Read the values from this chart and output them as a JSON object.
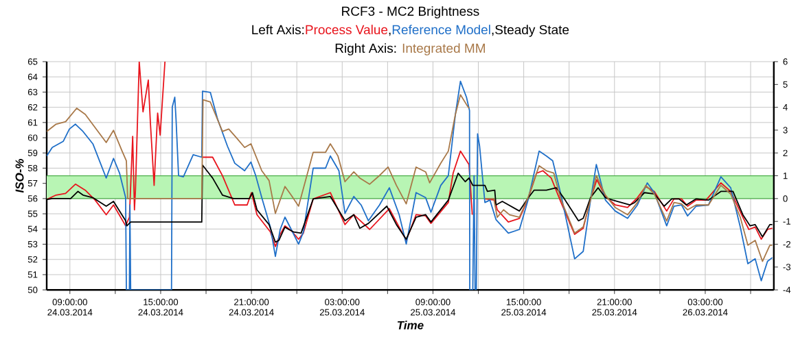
{
  "chart_data": {
    "type": "line",
    "title": "RCF3 - MC2 Brightness",
    "annotations": [
      "Left Axis:",
      ",",
      ",",
      "Right Axis:"
    ],
    "xlabel": "Time",
    "ylabel": "ISO-%",
    "xlim": [
      "2014-03-24T07:28",
      "2014-03-26T07:32"
    ],
    "xticks": [
      {
        "value": "2014-03-24T09:00",
        "label": "09:00:00 24.03.2014"
      },
      {
        "value": "2014-03-24T12:00",
        "label": null
      },
      {
        "value": "2014-03-24T15:00",
        "label": "15:00:00 24.03.2014"
      },
      {
        "value": "2014-03-24T18:00",
        "label": null
      },
      {
        "value": "2014-03-24T21:00",
        "label": "21:00:00 24.03.2014"
      },
      {
        "value": "2014-03-25T00:00",
        "label": null
      },
      {
        "value": "2014-03-25T03:00",
        "label": "03:00:00 25.03.2014"
      },
      {
        "value": "2014-03-25T06:00",
        "label": null
      },
      {
        "value": "2014-03-25T09:00",
        "label": "09:00:00 25.03.2014"
      },
      {
        "value": "2014-03-25T12:00",
        "label": null
      },
      {
        "value": "2014-03-25T15:00",
        "label": "15:00:00 25.03.2014"
      },
      {
        "value": "2014-03-25T18:00",
        "label": null
      },
      {
        "value": "2014-03-25T21:00",
        "label": "21:00:00 25.03.2014"
      },
      {
        "value": "2014-03-26T00:00",
        "label": null
      },
      {
        "value": "2014-03-26T03:00",
        "label": "03:00:00 26.03.2014"
      },
      {
        "value": "2014-03-26T06:00",
        "label": null
      }
    ],
    "ylim": [
      50,
      65
    ],
    "yticks": [
      50,
      51,
      52,
      53,
      54,
      55,
      56,
      57,
      58,
      59,
      60,
      61,
      62,
      63,
      64,
      65
    ],
    "y2lim": [
      -4,
      6
    ],
    "y2ticks": [
      -4,
      -3,
      -2,
      -1,
      0,
      1,
      2,
      3,
      4,
      5,
      6
    ],
    "grid": true,
    "legend": "top",
    "line_style": "solid",
    "bands": [
      {
        "axis": "y",
        "from": 56,
        "to": 57.5,
        "color": "#b8f5b4"
      }
    ],
    "series": [
      {
        "name": "Process Value",
        "color": "#e8141c",
        "x": [
          "2014-03-24T07:28",
          "2014-03-24T08:05",
          "2014-03-24T08:43",
          "2014-03-24T09:22",
          "2014-03-24T10:01",
          "2014-03-24T10:40",
          "2014-03-24T11:24",
          "2014-03-24T11:53",
          "2014-03-24T12:41",
          "2014-03-24T12:56",
          "2014-03-24T13:09",
          "2014-03-24T13:16",
          "2014-03-24T13:20",
          "2014-03-24T13:35",
          "2014-03-24T13:50",
          "2014-03-24T14:11",
          "2014-03-24T14:19",
          "2014-03-24T14:34",
          "2014-03-24T14:48",
          "2014-03-24T14:58",
          "2014-03-24T15:17",
          "2014-03-24T16:30",
          "2014-03-24T17:46",
          "2014-03-24T18:26",
          "2014-03-24T19:05",
          "2014-03-24T19:54",
          "2014-03-24T20:43",
          "2014-03-24T21:00",
          "2014-03-24T21:22",
          "2014-03-24T22:15",
          "2014-03-24T22:35",
          "2014-03-24T22:54",
          "2014-03-24T23:13",
          "2014-03-24T23:38",
          "2014-03-25T00:07",
          "2014-03-25T00:26",
          "2014-03-25T01:05",
          "2014-03-25T02:13",
          "2014-03-25T03:11",
          "2014-03-25T03:46",
          "2014-03-25T04:49",
          "2014-03-25T06:07",
          "2014-03-25T07:14",
          "2014-03-25T07:53",
          "2014-03-25T08:31",
          "2014-03-25T08:52",
          "2014-03-25T10:01",
          "2014-03-25T10:20",
          "2014-03-25T10:49",
          "2014-03-25T11:23",
          "2014-03-25T11:36",
          "2014-03-25T12:00",
          "2014-03-25T12:26",
          "2014-03-25T13:05",
          "2014-03-25T13:15",
          "2014-03-25T13:59",
          "2014-03-25T14:43",
          "2014-03-25T15:17",
          "2014-03-25T15:51",
          "2014-03-25T16:16",
          "2014-03-25T16:49",
          "2014-03-25T17:28",
          "2014-03-25T18:22",
          "2014-03-25T18:56",
          "2014-03-25T19:25",
          "2014-03-25T19:50",
          "2014-03-25T20:24",
          "2014-03-25T21:03",
          "2014-03-25T21:52",
          "2014-03-25T22:31",
          "2014-03-25T23:04",
          "2014-03-25T23:38",
          "2014-03-26T00:27",
          "2014-03-26T00:56",
          "2014-03-26T01:26",
          "2014-03-26T01:50",
          "2014-03-26T02:24",
          "2014-03-26T03:03",
          "2014-03-26T04:02",
          "2014-03-26T04:41",
          "2014-03-26T05:29",
          "2014-03-26T05:53",
          "2014-03-26T06:18",
          "2014-03-26T06:42",
          "2014-03-26T07:07",
          "2014-03-26T07:26"
        ],
        "values": [
          55.94,
          56.23,
          56.34,
          56.95,
          56.55,
          55.9,
          54.94,
          55.58,
          54.21,
          54.78,
          60.09,
          55.26,
          56.55,
          65.0,
          61.7,
          63.79,
          61.05,
          56.87,
          61.62,
          60.17,
          65.0,
          null,
          58.72,
          58.72,
          57.51,
          55.58,
          55.58,
          56.39,
          54.94,
          53.81,
          52.85,
          53.65,
          54.21,
          53.89,
          53.33,
          53.73,
          55.98,
          56.39,
          54.29,
          54.94,
          53.97,
          55.34,
          53.25,
          54.94,
          54.86,
          54.37,
          55.74,
          57.67,
          59.12,
          58.24,
          54.94,
          null,
          55.98,
          55.9,
          55.26,
          54.46,
          54.7,
          55.98,
          57.67,
          57.83,
          57.35,
          55.74,
          53.65,
          54.05,
          55.98,
          57.24,
          56.14,
          55.58,
          55.42,
          56.06,
          56.79,
          56.47,
          55.18,
          55.98,
          55.98,
          55.5,
          55.9,
          55.9,
          57.03,
          56.47,
          54.78,
          53.97,
          54.13,
          53.33,
          53.97,
          54.05
        ]
      },
      {
        "name": "Reference Model",
        "color": "#1f6fc8",
        "x": [
          "2014-03-24T07:28",
          "2014-03-24T07:50",
          "2014-03-24T08:34",
          "2014-03-24T08:58",
          "2014-03-24T09:22",
          "2014-03-24T09:52",
          "2014-03-24T10:31",
          "2014-03-24T11:24",
          "2014-03-24T11:53",
          "2014-03-24T12:17",
          "2014-03-24T12:41",
          "2014-03-24T12:44",
          "2014-03-24T12:56",
          "2014-03-24T12:58",
          "2014-03-24T13:01",
          "2014-03-24T15:43",
          "2014-03-24T15:46",
          "2014-03-24T15:56",
          "2014-03-24T16:01",
          "2014-03-24T16:11",
          "2014-03-24T16:30",
          "2014-03-24T17:09",
          "2014-03-24T17:43",
          "2014-03-24T17:46",
          "2014-03-24T18:17",
          "2014-03-24T18:46",
          "2014-03-24T19:25",
          "2014-03-24T19:54",
          "2014-03-24T20:33",
          "2014-03-24T20:58",
          "2014-03-24T21:17",
          "2014-03-24T21:41",
          "2014-03-24T22:15",
          "2014-03-24T22:35",
          "2014-03-24T22:54",
          "2014-03-24T23:13",
          "2014-03-24T23:38",
          "2014-03-25T00:07",
          "2014-03-25T00:26",
          "2014-03-25T01:05",
          "2014-03-25T01:54",
          "2014-03-25T02:13",
          "2014-03-25T02:47",
          "2014-03-25T03:11",
          "2014-03-25T03:46",
          "2014-03-25T04:15",
          "2014-03-25T04:44",
          "2014-03-25T05:28",
          "2014-03-25T06:07",
          "2014-03-25T06:46",
          "2014-03-25T07:14",
          "2014-03-25T07:53",
          "2014-03-25T08:31",
          "2014-03-25T08:52",
          "2014-03-25T09:31",
          "2014-03-25T10:01",
          "2014-03-25T10:29",
          "2014-03-25T10:49",
          "2014-03-25T11:13",
          "2014-03-25T11:25",
          "2014-03-25T11:26",
          "2014-03-25T11:38",
          "2014-03-25T11:43",
          "2014-03-25T11:47",
          "2014-03-25T11:52",
          "2014-03-25T11:57",
          "2014-03-25T12:05",
          "2014-03-25T12:26",
          "2014-03-25T12:46",
          "2014-03-25T13:10",
          "2014-03-25T13:59",
          "2014-03-25T14:43",
          "2014-03-25T15:17",
          "2014-03-25T16:01",
          "2014-03-25T16:30",
          "2014-03-25T16:55",
          "2014-03-25T17:28",
          "2014-03-25T18:22",
          "2014-03-25T18:56",
          "2014-03-25T19:25",
          "2014-03-25T19:48",
          "2014-03-25T20:24",
          "2014-03-25T21:03",
          "2014-03-25T21:52",
          "2014-03-25T22:31",
          "2014-03-25T23:10",
          "2014-03-25T23:38",
          "2014-03-26T00:27",
          "2014-03-26T00:56",
          "2014-03-26T01:26",
          "2014-03-26T01:50",
          "2014-03-26T02:24",
          "2014-03-26T03:13",
          "2014-03-26T04:02",
          "2014-03-26T04:41",
          "2014-03-26T05:19",
          "2014-03-26T05:49",
          "2014-03-26T06:18",
          "2014-03-26T06:42",
          "2014-03-26T07:07",
          "2014-03-26T07:26"
        ],
        "values": [
          58.8,
          59.36,
          59.77,
          60.57,
          60.89,
          60.41,
          59.6,
          57.35,
          58.64,
          57.67,
          56.06,
          50,
          50,
          55.58,
          50,
          50,
          62.02,
          62.66,
          61.21,
          57.51,
          57.43,
          58.88,
          58.72,
          63.06,
          62.98,
          61.21,
          59.44,
          58.32,
          57.83,
          58.4,
          57.51,
          56.06,
          54.13,
          52.2,
          53.97,
          54.78,
          53.97,
          53.01,
          53.81,
          58.0,
          58.0,
          58.8,
          57.83,
          55.02,
          56.14,
          55.58,
          54.54,
          55.58,
          56.71,
          54.94,
          53.01,
          56.39,
          56.06,
          55.1,
          56.87,
          57.51,
          61.54,
          63.71,
          62.66,
          61.78,
          50,
          50,
          57.51,
          50,
          50,
          60.25,
          59.44,
          55.74,
          55.9,
          54.62,
          53.73,
          53.97,
          55.9,
          59.12,
          58.8,
          58.48,
          56.23,
          52.04,
          52.53,
          55.9,
          58.24,
          55.9,
          55.18,
          54.7,
          55.58,
          57.03,
          56.39,
          54.21,
          55.5,
          55.58,
          54.86,
          55.5,
          55.58,
          57.43,
          56.71,
          54.13,
          51.72,
          52.04,
          50.6,
          51.88,
          52.12
        ]
      },
      {
        "name": "Steady State",
        "color": "#000000",
        "x": [
          "2014-03-24T07:28",
          "2014-03-24T07:50",
          "2014-03-24T09:03",
          "2014-03-24T09:32",
          "2014-03-24T09:52",
          "2014-03-24T10:31",
          "2014-03-24T11:24",
          "2014-03-24T11:53",
          "2014-03-24T12:41",
          "2014-03-24T12:46",
          "2014-03-24T13:01",
          "2014-03-24T17:43",
          "2014-03-24T17:46",
          "2014-03-24T18:26",
          "2014-03-24T19:05",
          "2014-03-24T19:49",
          "2014-03-24T20:52",
          "2014-03-24T21:04",
          "2014-03-24T21:22",
          "2014-03-24T22:10",
          "2014-03-24T22:35",
          "2014-03-24T22:49",
          "2014-03-24T23:13",
          "2014-03-24T23:28",
          "2014-03-24T23:47",
          "2014-03-25T00:17",
          "2014-03-25T01:05",
          "2014-03-25T02:13",
          "2014-03-25T03:11",
          "2014-03-25T03:46",
          "2014-03-25T04:10",
          "2014-03-25T04:44",
          "2014-03-25T05:57",
          "2014-03-25T06:35",
          "2014-03-25T07:14",
          "2014-03-25T07:53",
          "2014-03-25T08:31",
          "2014-03-25T08:52",
          "2014-03-25T10:01",
          "2014-03-25T10:40",
          "2014-03-25T11:08",
          "2014-03-25T11:23",
          "2014-03-25T11:38",
          "2014-03-25T12:26",
          "2014-03-25T12:36",
          "2014-03-25T13:05",
          "2014-03-25T13:10",
          "2014-03-25T13:35",
          "2014-03-25T14:43",
          "2014-03-25T15:17",
          "2014-03-25T15:41",
          "2014-03-25T16:30",
          "2014-03-25T17:09",
          "2014-03-25T17:38",
          "2014-03-25T18:37",
          "2014-03-25T18:56",
          "2014-03-25T19:25",
          "2014-03-25T19:55",
          "2014-03-25T20:24",
          "2014-03-25T20:53",
          "2014-03-25T22:01",
          "2014-03-25T22:20",
          "2014-03-25T22:59",
          "2014-03-25T23:38",
          "2014-03-26T00:17",
          "2014-03-26T00:47",
          "2014-03-26T01:16",
          "2014-03-26T01:45",
          "2014-03-26T02:24",
          "2014-03-26T03:13",
          "2014-03-26T04:02",
          "2014-03-26T04:50",
          "2014-03-26T05:29",
          "2014-03-26T05:58",
          "2014-03-26T06:18",
          "2014-03-26T06:47",
          "2014-03-26T07:16",
          "2014-03-26T07:26"
        ],
        "values": [
          55.94,
          56.0,
          56.0,
          56.47,
          56.23,
          56.06,
          55.5,
          55.82,
          54.54,
          54.21,
          54.46,
          54.46,
          58.2,
          57.35,
          56.23,
          56.0,
          56.0,
          56.39,
          55.26,
          54.29,
          53.14,
          53.25,
          54.13,
          53.97,
          53.81,
          53.73,
          55.98,
          56.14,
          54.54,
          54.94,
          54.05,
          54.37,
          55.5,
          54.29,
          53.33,
          54.78,
          54.94,
          54.46,
          55.9,
          57.67,
          57.11,
          57.35,
          56.87,
          56.87,
          56.47,
          56.55,
          55.58,
          55.82,
          55.18,
          56.03,
          56.55,
          56.55,
          56.71,
          56.06,
          54.54,
          54.7,
          56.06,
          56.71,
          56.06,
          55.9,
          55.58,
          55.74,
          56.39,
          56.31,
          55.5,
          55.98,
          55.98,
          55.58,
          55.98,
          55.9,
          56.47,
          56.47,
          54.94,
          54.21,
          54.29,
          53.49,
          54.29,
          54.29
        ]
      },
      {
        "name": "Integrated MM",
        "color": "#a87848",
        "axis": "y2",
        "x": [
          "2014-03-24T07:28",
          "2014-03-24T08:05",
          "2014-03-24T08:43",
          "2014-03-24T09:27",
          "2014-03-24T10:01",
          "2014-03-24T11:24",
          "2014-03-24T11:53",
          "2014-03-24T12:27",
          "2014-03-24T12:44",
          "2014-03-24T12:49",
          "2014-03-24T17:43",
          "2014-03-24T17:48",
          "2014-03-24T18:17",
          "2014-03-24T19:05",
          "2014-03-24T19:30",
          "2014-03-24T20:04",
          "2014-03-24T20:33",
          "2014-03-24T20:58",
          "2014-03-24T21:41",
          "2014-03-24T22:10",
          "2014-03-24T22:35",
          "2014-03-24T23:13",
          "2014-03-24T23:38",
          "2014-03-25T00:07",
          "2014-03-25T01:05",
          "2014-03-25T01:54",
          "2014-03-25T02:13",
          "2014-03-25T02:43",
          "2014-03-25T03:11",
          "2014-03-25T03:46",
          "2014-03-25T04:10",
          "2014-03-25T04:49",
          "2014-03-25T05:28",
          "2014-03-25T06:02",
          "2014-03-25T06:35",
          "2014-03-25T07:14",
          "2014-03-25T07:53",
          "2014-03-25T08:31",
          "2014-03-25T08:47",
          "2014-03-25T09:31",
          "2014-03-25T10:01",
          "2014-03-25T10:29",
          "2014-03-25T10:49",
          "2014-03-25T11:13",
          "2014-03-25T11:23",
          "2014-03-25T12:00",
          "2014-03-25T12:26",
          "2014-03-25T13:01",
          "2014-03-25T13:15",
          "2014-03-25T13:40",
          "2014-03-25T14:04",
          "2014-03-25T14:43",
          "2014-03-25T15:17",
          "2014-03-25T16:01",
          "2014-03-25T16:30",
          "2014-03-25T16:59",
          "2014-03-25T17:28",
          "2014-03-25T18:22",
          "2014-03-25T18:56",
          "2014-03-25T19:25",
          "2014-03-25T19:48",
          "2014-03-25T20:24",
          "2014-03-25T21:03",
          "2014-03-25T21:52",
          "2014-03-25T22:31",
          "2014-03-25T23:04",
          "2014-03-25T23:38",
          "2014-03-26T00:27",
          "2014-03-26T00:56",
          "2014-03-26T01:26",
          "2014-03-26T01:50",
          "2014-03-26T02:24",
          "2014-03-26T03:13",
          "2014-03-26T04:02",
          "2014-03-26T04:41",
          "2014-03-26T05:19",
          "2014-03-26T05:49",
          "2014-03-26T06:18",
          "2014-03-26T06:47",
          "2014-03-26T07:16",
          "2014-03-26T07:26"
        ],
        "values": [
          2.94,
          3.26,
          3.37,
          3.96,
          3.69,
          2.46,
          2.99,
          2.08,
          1.65,
          0,
          0,
          4.33,
          4.23,
          2.94,
          3.05,
          2.62,
          2.24,
          2.4,
          1.22,
          0.79,
          -0.65,
          0.53,
          0.15,
          -0.33,
          2.03,
          2.03,
          2.4,
          1.87,
          0.74,
          1.17,
          0.9,
          0.63,
          1.01,
          1.38,
          0.58,
          -0.23,
          1.38,
          1.17,
          0.69,
          1.55,
          2.08,
          3.69,
          4.55,
          4.12,
          3.96,
          null,
          0,
          0,
          -0.82,
          -0.49,
          -0.71,
          -0.82,
          0.04,
          1.44,
          1.22,
          1.12,
          -0.06,
          -1.51,
          -1.24,
          -0.06,
          1.01,
          0.15,
          -0.39,
          -0.71,
          -0.17,
          0.58,
          0.2,
          -0.98,
          -0.17,
          -0.23,
          -0.49,
          -0.28,
          -0.28,
          0.58,
          0.2,
          -0.82,
          -2.04,
          -1.83,
          -2.75,
          -2.05,
          -2.05
        ]
      }
    ]
  }
}
